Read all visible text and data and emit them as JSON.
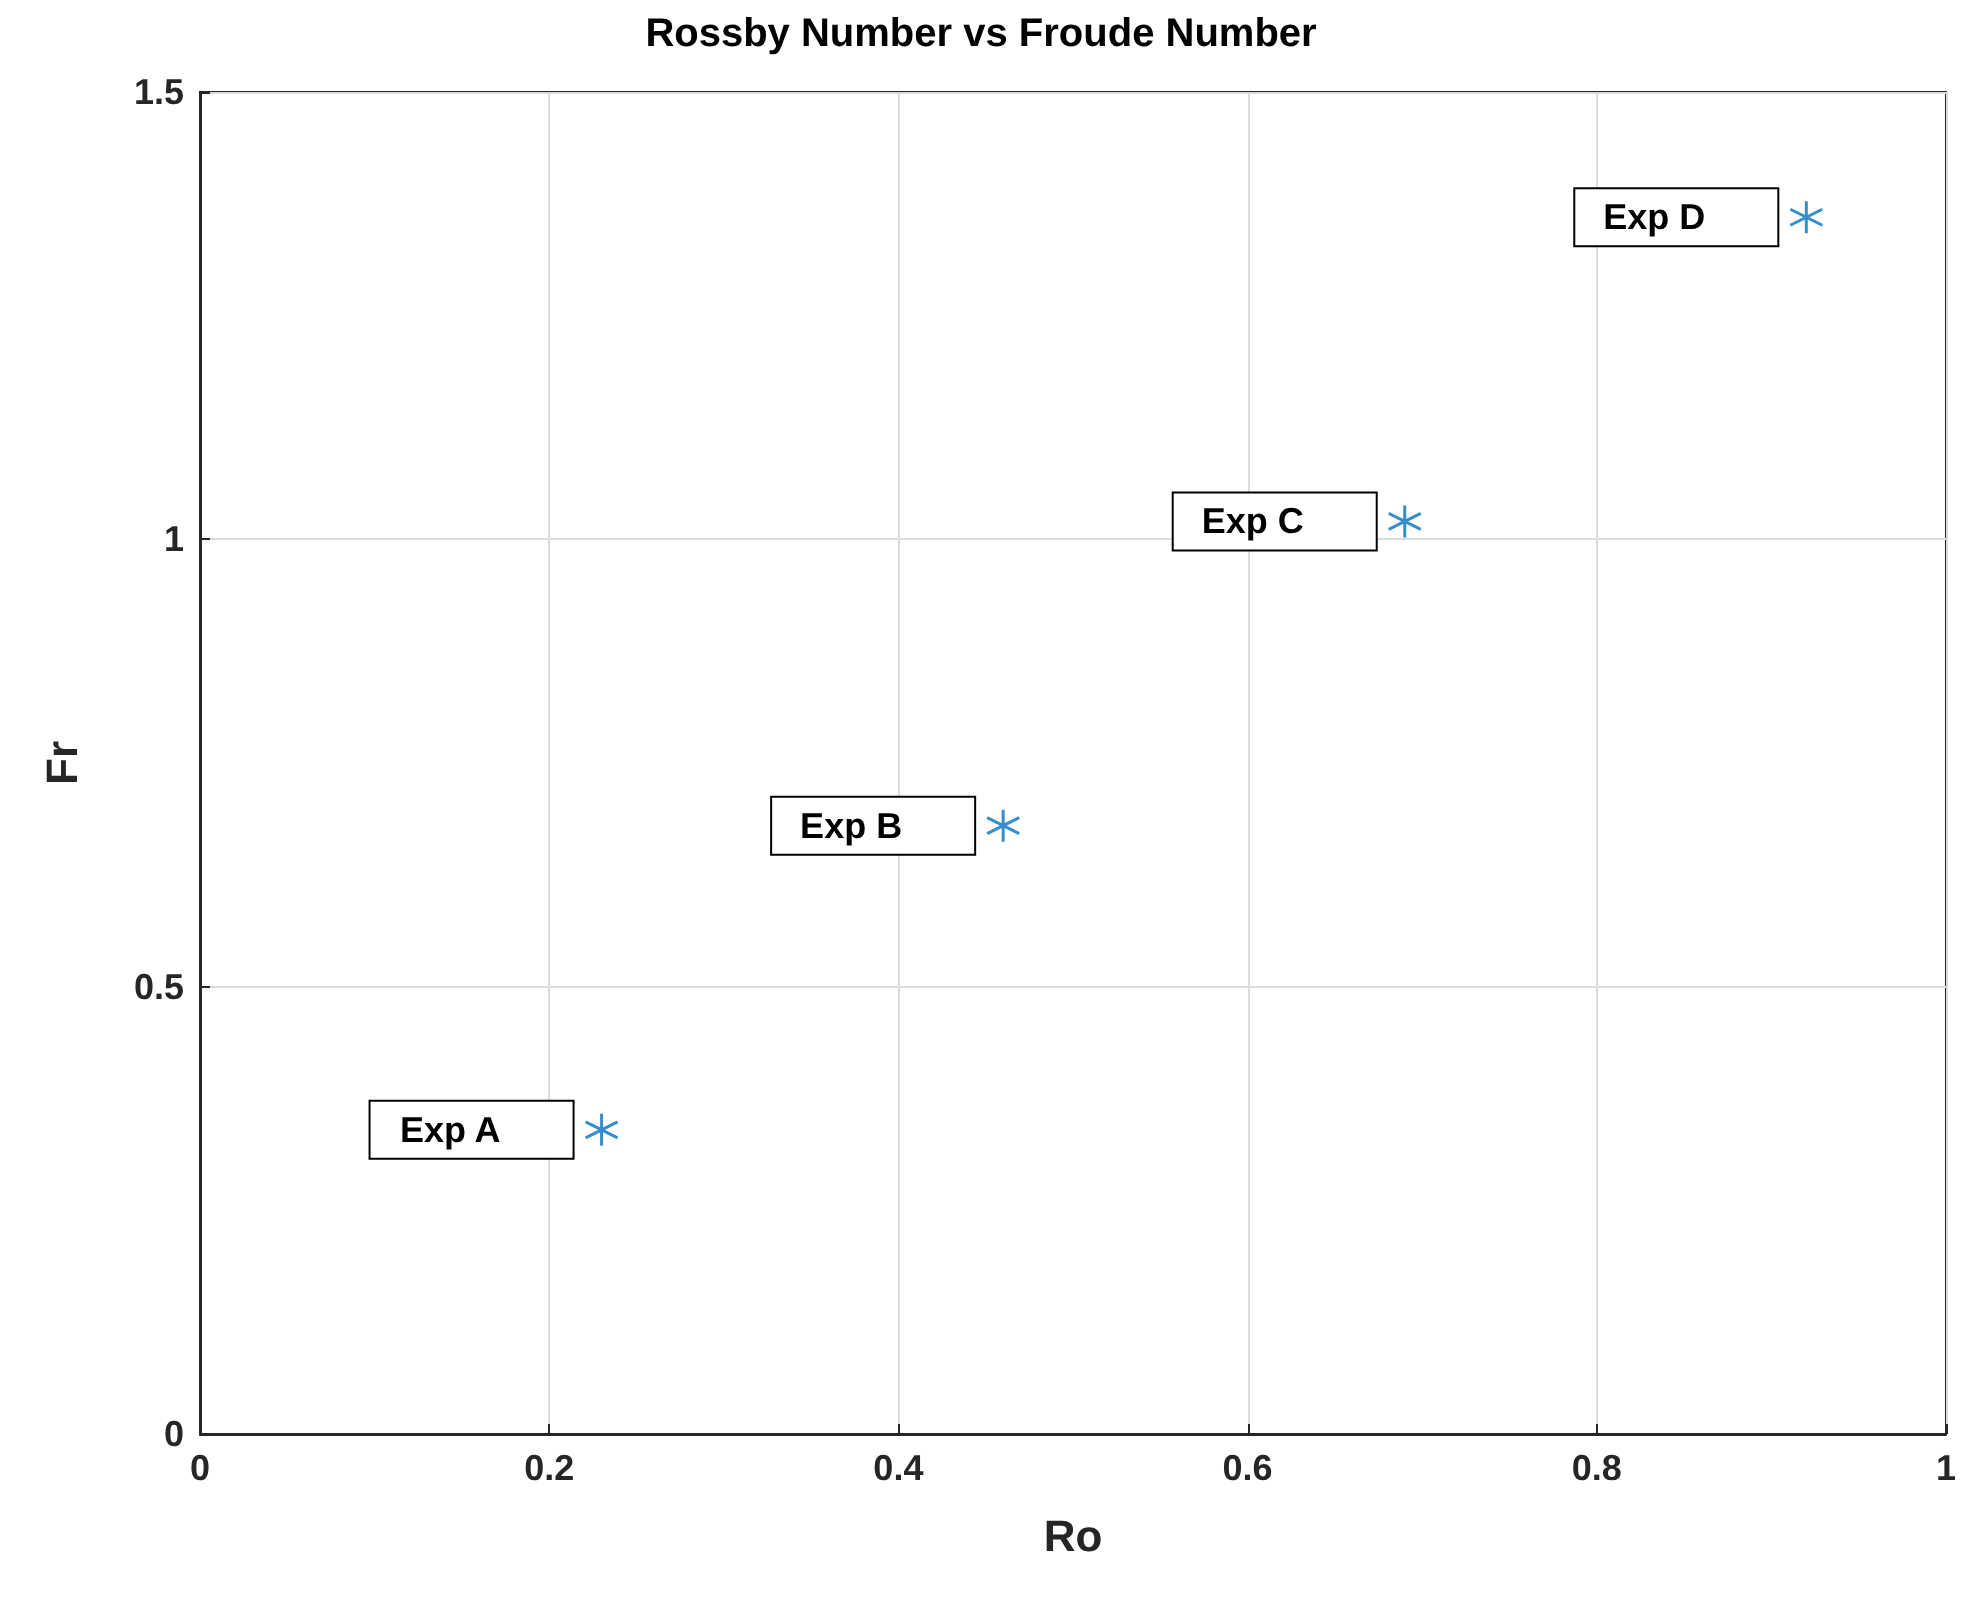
{
  "chart_data": {
    "type": "scatter",
    "title": "Rossby Number vs Froude Number",
    "xlabel": "Ro",
    "ylabel": "Fr",
    "x": [
      0.23,
      0.46,
      0.69,
      0.92
    ],
    "series": [
      {
        "color": "#0072bd",
        "values": [
          0.34,
          0.68,
          1.02,
          1.36
        ]
      }
    ],
    "xlim": [
      0,
      1
    ],
    "xticks": [
      0,
      0.2,
      0.4,
      0.6,
      0.8,
      1
    ],
    "ylim": [
      0,
      1.5
    ],
    "yticks": [
      0,
      0.5,
      1,
      1.5
    ],
    "grid": true,
    "marker": "cross",
    "annotations": [
      {
        "text": "Exp A",
        "x": 0.23,
        "y": 0.34
      },
      {
        "text": "Exp B",
        "x": 0.46,
        "y": 0.68
      },
      {
        "text": "Exp C",
        "x": 0.69,
        "y": 1.02
      },
      {
        "text": "Exp D",
        "x": 0.92,
        "y": 1.36
      }
    ]
  }
}
